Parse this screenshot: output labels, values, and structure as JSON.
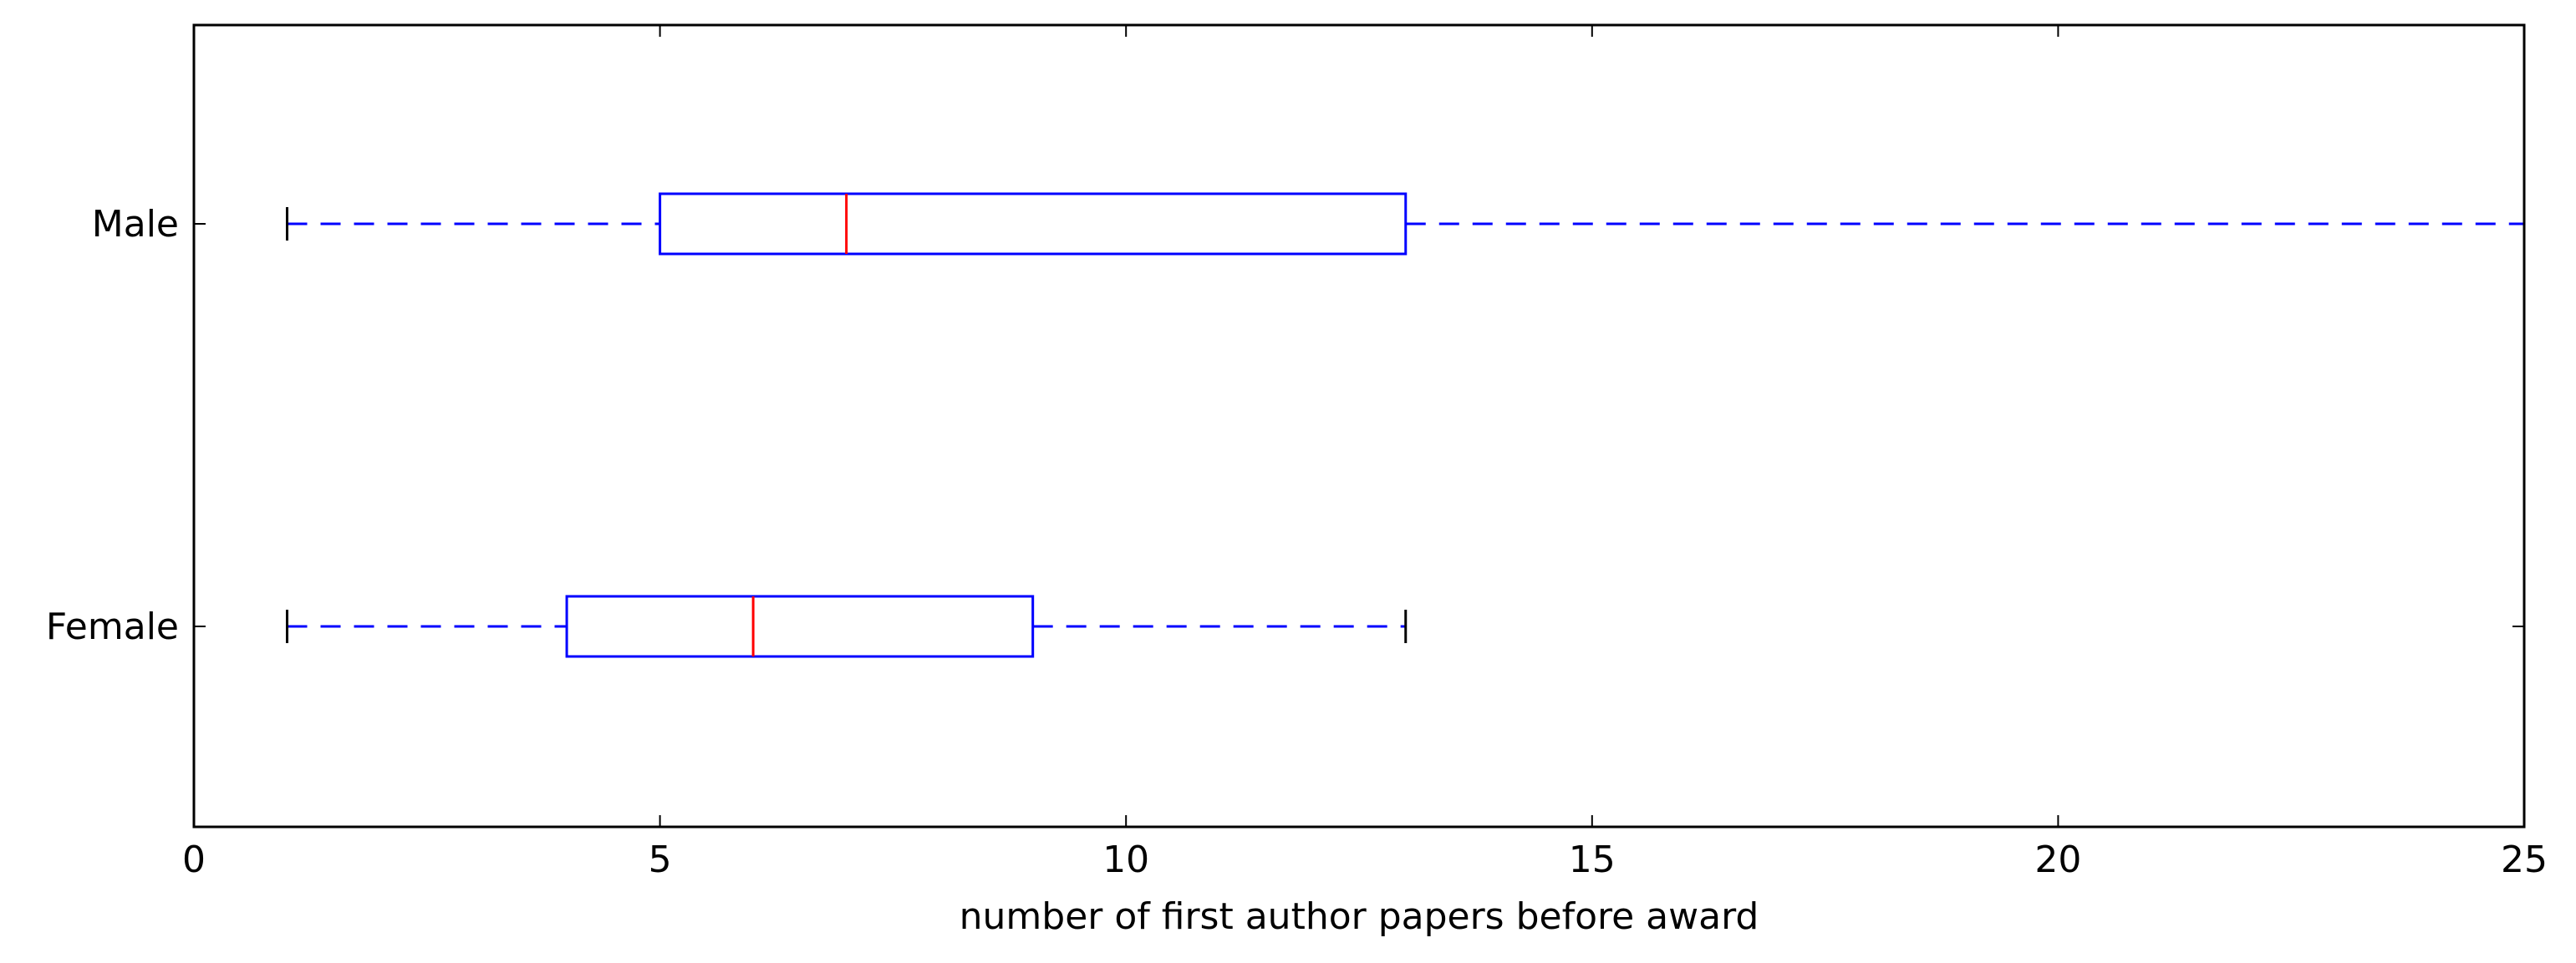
{
  "chart_data": {
    "type": "boxplot",
    "orientation": "horizontal",
    "title": "",
    "xlabel": "number of first author papers before award",
    "ylabel": "",
    "xlim": [
      0,
      25
    ],
    "xticks": [
      0,
      5,
      10,
      15,
      20,
      25
    ],
    "xtick_labels": [
      "0",
      "5",
      "10",
      "15",
      "20",
      "25"
    ],
    "grid": false,
    "categories": [
      "Female",
      "Male"
    ],
    "boxes": [
      {
        "label": "Female",
        "whisker_low": 1,
        "q1": 4,
        "median": 6,
        "q3": 9,
        "whisker_high": 13
      },
      {
        "label": "Male",
        "whisker_low": 1,
        "q1": 5,
        "median": 7,
        "q3": 13,
        "whisker_high": 25
      }
    ],
    "colors": {
      "box": "#0000ff",
      "whisker": "#0000ff",
      "median": "#ff0000",
      "cap": "#000000",
      "axes": "#000000"
    }
  }
}
